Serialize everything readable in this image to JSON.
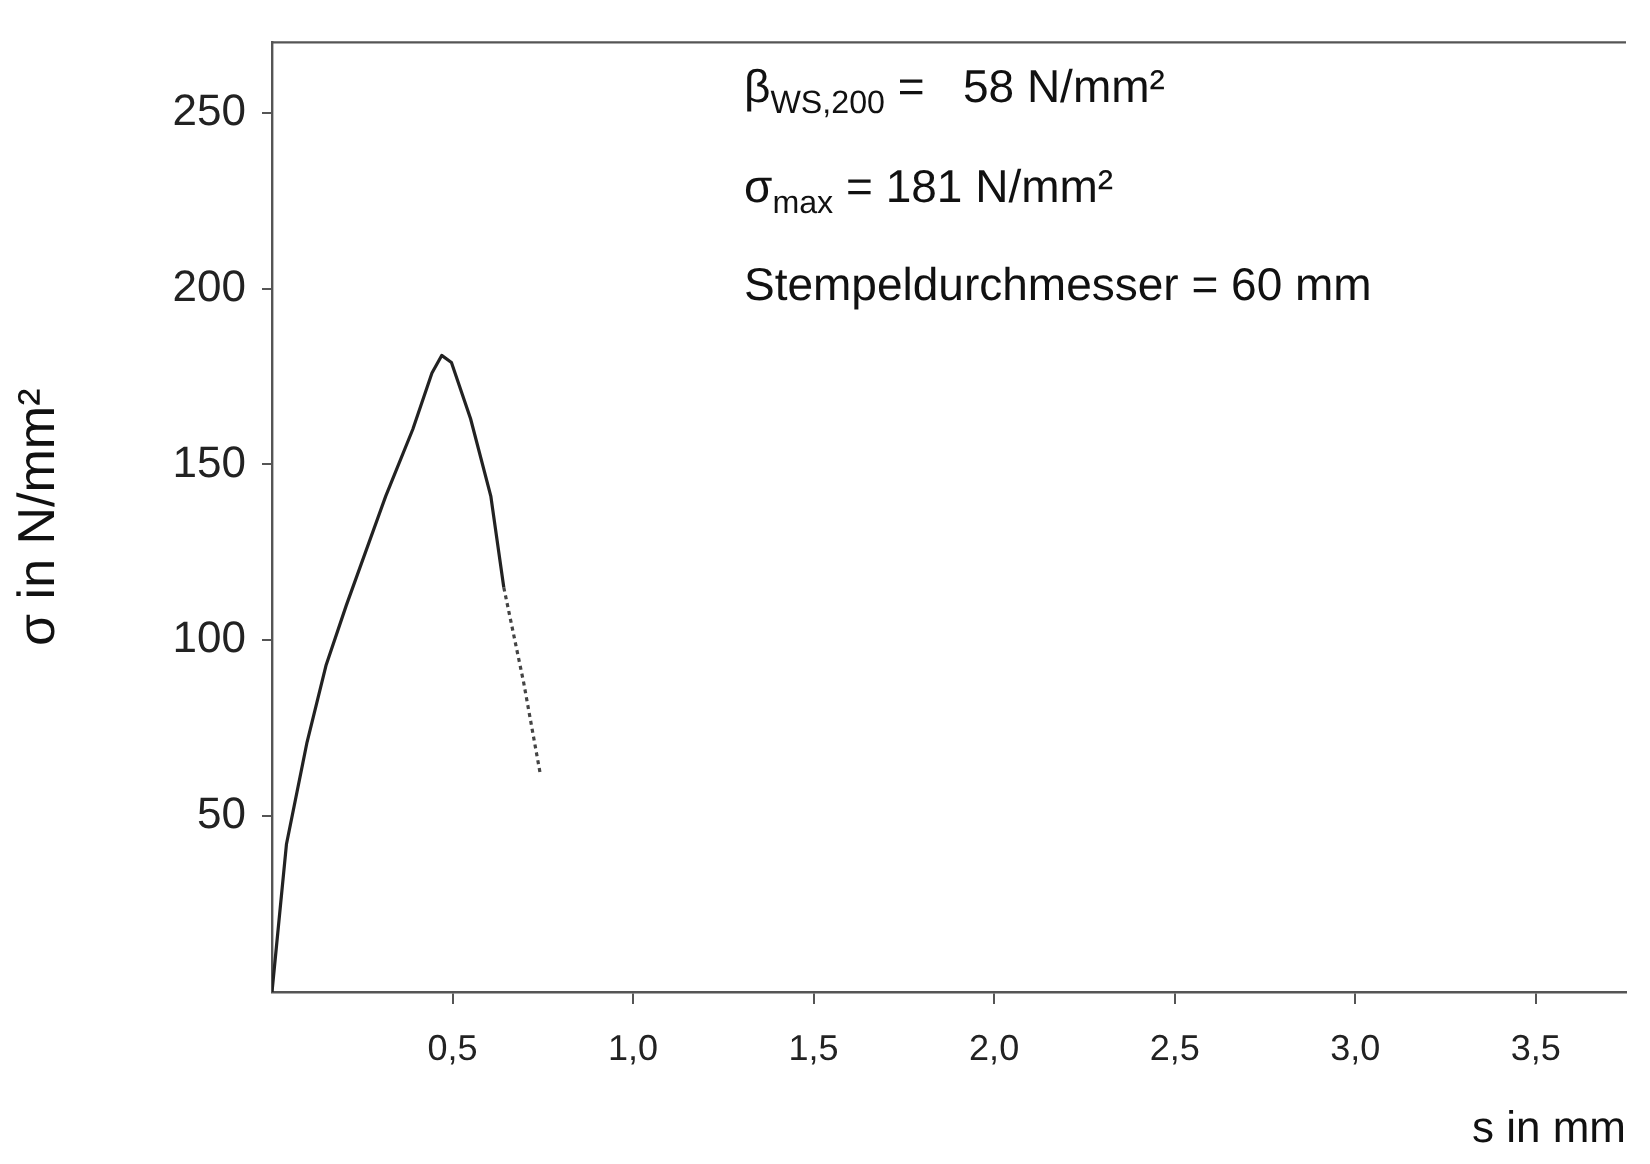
{
  "chart_data": {
    "type": "line",
    "xlabel": "s in mm",
    "ylabel": "σ in N/mm²",
    "xlim": [
      0,
      3.75
    ],
    "xticks": [
      {
        "value": 0.5,
        "label": "0,5"
      },
      {
        "value": 1.0,
        "label": "1,0"
      },
      {
        "value": 1.5,
        "label": "1,5"
      },
      {
        "value": 2.0,
        "label": "2,0"
      },
      {
        "value": 2.5,
        "label": "2,5"
      },
      {
        "value": 3.0,
        "label": "3,0"
      },
      {
        "value": 3.5,
        "label": "3,5"
      }
    ],
    "ylim": [
      0,
      270
    ],
    "yticks": [
      50,
      100,
      150,
      200,
      250
    ],
    "grid": false,
    "legend": false,
    "marker": "none",
    "series": [
      {
        "color": "#222222",
        "line_style": "solid",
        "x": [
          0,
          0.04,
          0.097,
          0.15,
          0.206,
          0.315,
          0.39,
          0.443,
          0.47,
          0.497,
          0.55,
          0.606,
          0.642
        ],
        "values": [
          0,
          42,
          71,
          93,
          110,
          141,
          160,
          176,
          181,
          179,
          163,
          141,
          115
        ]
      },
      {
        "color": "#444444",
        "line_style": "dotted",
        "x": [
          0.642,
          0.697,
          0.743
        ],
        "values": [
          115,
          88,
          62
        ]
      }
    ],
    "annotations": [
      "β$_{WS,200}$ =   58 N/mm²",
      "σ$_{max}$ = 181 N/mm²",
      "Stempeldurchmesser = 60 mm"
    ]
  }
}
